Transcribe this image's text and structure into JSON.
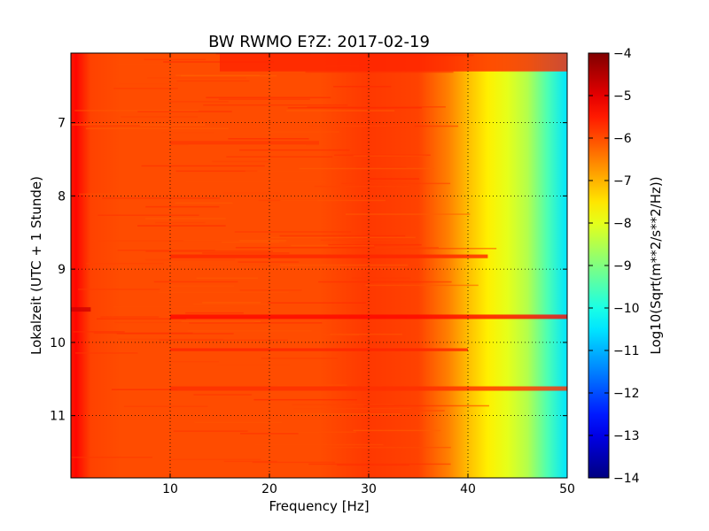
{
  "chart_data": {
    "type": "heatmap",
    "title": "BW RWMO E?Z: 2017-02-19",
    "xlabel": "Frequency [Hz]",
    "ylabel": "Lokalzeit (UTC + 1 Stunde)",
    "xlim": [
      0,
      50
    ],
    "ylim": [
      11.85,
      6.05
    ],
    "x_ticks": [
      10,
      20,
      30,
      40,
      50
    ],
    "x_tick_labels": [
      "10",
      "20",
      "30",
      "40",
      "50"
    ],
    "y_ticks": [
      7,
      8,
      9,
      10,
      11
    ],
    "y_tick_labels": [
      "7",
      "8",
      "9",
      "10",
      "11"
    ],
    "grid": true,
    "colormap": "jet",
    "colorbar": {
      "label": "Log10(Sqrt(m**2/s**2/Hz))",
      "range": [
        -14,
        -4
      ],
      "ticks": [
        -4,
        -5,
        -6,
        -7,
        -8,
        -9,
        -10,
        -11,
        -12,
        -13,
        -14
      ],
      "tick_labels": [
        "−4",
        "−5",
        "−6",
        "−7",
        "−8",
        "−9",
        "−10",
        "−11",
        "−12",
        "−13",
        "−14"
      ]
    },
    "spectral_profile": {
      "frequency_hz": [
        0,
        0.5,
        1,
        2,
        5,
        10,
        20,
        25,
        30,
        35,
        38,
        40,
        42,
        44,
        46,
        48,
        50
      ],
      "log10_amplitude": [
        -5.5,
        -5.3,
        -5.5,
        -5.9,
        -6.0,
        -6.0,
        -6.0,
        -6.0,
        -5.8,
        -5.9,
        -6.5,
        -7.1,
        -7.6,
        -8.0,
        -8.5,
        -9.5,
        -10.5
      ]
    },
    "time_bands": [
      {
        "time": 6.05,
        "time_end": 6.3,
        "freq_from": 15,
        "freq_to": 50,
        "level": -5.6
      },
      {
        "time": 7.25,
        "time_end": 7.3,
        "freq_from": 10,
        "freq_to": 25,
        "level": -5.8
      },
      {
        "time": 8.8,
        "time_end": 8.85,
        "freq_from": 10,
        "freq_to": 42,
        "level": -5.6
      },
      {
        "time": 9.52,
        "time_end": 9.58,
        "freq_from": 0,
        "freq_to": 2,
        "level": -4.8
      },
      {
        "time": 9.62,
        "time_end": 9.68,
        "freq_from": 10,
        "freq_to": 50,
        "level": -5.3
      },
      {
        "time": 10.08,
        "time_end": 10.12,
        "freq_from": 10,
        "freq_to": 40,
        "level": -5.6
      },
      {
        "time": 10.6,
        "time_end": 10.66,
        "freq_from": 10,
        "freq_to": 50,
        "level": -5.7
      }
    ]
  }
}
